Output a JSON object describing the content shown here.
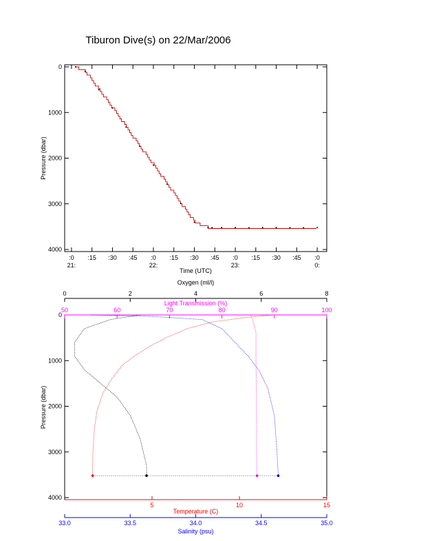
{
  "title": "Tiburon Dive(s) on 22/Mar/2006",
  "colors": {
    "axis": "#000000",
    "temperature": "#ff0000",
    "light_transmission": "#ff00ff",
    "oxygen": "#000000",
    "salinity": "#0000ff",
    "dive_profile": "#cc0000"
  },
  "chart_data": [
    {
      "type": "line",
      "title": "Tiburon Dive(s) on 22/Mar/2006",
      "xlabel": "Time (UTC)",
      "ylabel": "Pressure (dbar)",
      "ylim": [
        4000,
        0
      ],
      "xlim_minutes_after_21utc": [
        -5,
        187
      ],
      "x_ticks": [
        {
          "label": ":0",
          "minute": 0,
          "hour_label": "21:"
        },
        {
          "label": ":15",
          "minute": 15,
          "hour_label": ""
        },
        {
          "label": ":30",
          "minute": 30,
          "hour_label": ""
        },
        {
          "label": ":45",
          "minute": 45,
          "hour_label": ""
        },
        {
          "label": ":0",
          "minute": 60,
          "hour_label": "22:"
        },
        {
          "label": ":15",
          "minute": 75,
          "hour_label": ""
        },
        {
          "label": ":30",
          "minute": 90,
          "hour_label": ""
        },
        {
          "label": ":45",
          "minute": 105,
          "hour_label": ""
        },
        {
          "label": ":0",
          "minute": 120,
          "hour_label": "23:"
        },
        {
          "label": ":15",
          "minute": 135,
          "hour_label": ""
        },
        {
          "label": ":30",
          "minute": 150,
          "hour_label": ""
        },
        {
          "label": ":45",
          "minute": 165,
          "hour_label": ""
        },
        {
          "label": ":0",
          "minute": 180,
          "hour_label": "0:"
        }
      ],
      "y_ticks": [
        0,
        1000,
        2000,
        3000,
        4000
      ],
      "series": [
        {
          "x": [
            3,
            10,
            20,
            30,
            40,
            50,
            60,
            70,
            80,
            90,
            100,
            103,
            110,
            120,
            130,
            140,
            150,
            160,
            170,
            180
          ],
          "y": [
            0,
            100,
            500,
            900,
            1320,
            1740,
            2150,
            2570,
            2990,
            3400,
            3520,
            3520,
            3520,
            3520,
            3525,
            3520,
            3520,
            3525,
            3525,
            3520
          ]
        }
      ]
    },
    {
      "type": "line",
      "ylabel": "Pressure (dbar)",
      "ylim": [
        4000,
        0
      ],
      "y_ticks": [
        0,
        1000,
        2000,
        3000,
        4000
      ],
      "axes": [
        {
          "label": "Oxygen (ml/l)",
          "position": "top",
          "range": [
            0,
            8
          ],
          "ticks": [
            0,
            2,
            4,
            6,
            8
          ]
        },
        {
          "label": "Light Transmission (%)",
          "position": "top",
          "range": [
            50,
            100
          ],
          "ticks": [
            50,
            60,
            70,
            80,
            90,
            100
          ]
        },
        {
          "label": "Temperature (C)",
          "position": "bottom",
          "range": [
            0,
            15
          ],
          "ticks": [
            5,
            10,
            15
          ]
        },
        {
          "label": "Salinity (psu)",
          "position": "bottom",
          "range": [
            33.0,
            35.0
          ],
          "ticks": [
            "33.0",
            "33.5",
            "34.0",
            "34.5",
            "35.0"
          ]
        }
      ],
      "series": [
        {
          "axis": "Temperature (C)",
          "x": [
            11.9,
            10.5,
            8.5,
            7.0,
            5.8,
            4.8,
            4.0,
            3.3,
            2.7,
            2.2,
            1.85,
            1.7,
            1.62,
            1.6,
            1.6
          ],
          "y": [
            0,
            50,
            150,
            300,
            500,
            700,
            900,
            1100,
            1400,
            1700,
            2100,
            2500,
            3000,
            3400,
            3520
          ]
        },
        {
          "axis": "Oxygen (ml/l)",
          "x": [
            2.3,
            1.4,
            0.6,
            0.3,
            0.3,
            0.6,
            1.1,
            1.6,
            2.0,
            2.3,
            2.4,
            2.5,
            2.5
          ],
          "y": [
            0,
            100,
            300,
            600,
            900,
            1200,
            1500,
            1800,
            2200,
            2700,
            3000,
            3300,
            3520
          ]
        },
        {
          "axis": "Salinity (psu)",
          "x": [
            33.2,
            33.65,
            34.05,
            34.2,
            34.3,
            34.4,
            34.48,
            34.55,
            34.6,
            34.62,
            34.63
          ],
          "y": [
            0,
            30,
            100,
            300,
            600,
            900,
            1200,
            1600,
            2200,
            3000,
            3520
          ]
        },
        {
          "axis": "Light Transmission (%)",
          "x": [
            85.5,
            86.0,
            86.5,
            86.5,
            86.6,
            86.6,
            86.7
          ],
          "y": [
            0,
            150,
            400,
            1000,
            2000,
            3000,
            3520
          ]
        }
      ]
    }
  ]
}
